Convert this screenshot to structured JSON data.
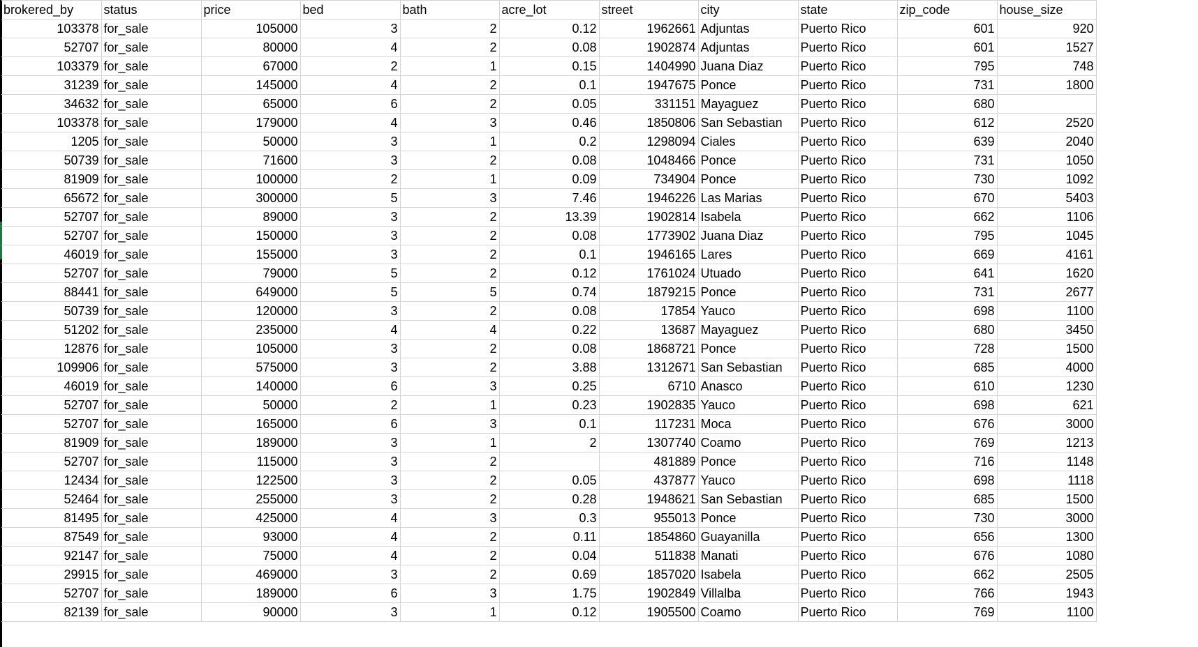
{
  "columns": [
    {
      "key": "brokered_by",
      "label": "brokered_by",
      "align": "num"
    },
    {
      "key": "status",
      "label": "status",
      "align": "txt"
    },
    {
      "key": "price",
      "label": "price",
      "align": "num"
    },
    {
      "key": "bed",
      "label": "bed",
      "align": "num"
    },
    {
      "key": "bath",
      "label": "bath",
      "align": "num"
    },
    {
      "key": "acre_lot",
      "label": "acre_lot",
      "align": "num"
    },
    {
      "key": "street",
      "label": "street",
      "align": "num"
    },
    {
      "key": "city",
      "label": "city",
      "align": "txt"
    },
    {
      "key": "state",
      "label": "state",
      "align": "txt"
    },
    {
      "key": "zip_code",
      "label": "zip_code",
      "align": "num"
    },
    {
      "key": "house_size",
      "label": "house_size",
      "align": "num"
    }
  ],
  "rows": [
    [
      "103378",
      "for_sale",
      "105000",
      "3",
      "2",
      "0.12",
      "1962661",
      "Adjuntas",
      "Puerto Rico",
      "601",
      "920"
    ],
    [
      "52707",
      "for_sale",
      "80000",
      "4",
      "2",
      "0.08",
      "1902874",
      "Adjuntas",
      "Puerto Rico",
      "601",
      "1527"
    ],
    [
      "103379",
      "for_sale",
      "67000",
      "2",
      "1",
      "0.15",
      "1404990",
      "Juana Diaz",
      "Puerto Rico",
      "795",
      "748"
    ],
    [
      "31239",
      "for_sale",
      "145000",
      "4",
      "2",
      "0.1",
      "1947675",
      "Ponce",
      "Puerto Rico",
      "731",
      "1800"
    ],
    [
      "34632",
      "for_sale",
      "65000",
      "6",
      "2",
      "0.05",
      "331151",
      "Mayaguez",
      "Puerto Rico",
      "680",
      ""
    ],
    [
      "103378",
      "for_sale",
      "179000",
      "4",
      "3",
      "0.46",
      "1850806",
      "San Sebastian",
      "Puerto Rico",
      "612",
      "2520"
    ],
    [
      "1205",
      "for_sale",
      "50000",
      "3",
      "1",
      "0.2",
      "1298094",
      "Ciales",
      "Puerto Rico",
      "639",
      "2040"
    ],
    [
      "50739",
      "for_sale",
      "71600",
      "3",
      "2",
      "0.08",
      "1048466",
      "Ponce",
      "Puerto Rico",
      "731",
      "1050"
    ],
    [
      "81909",
      "for_sale",
      "100000",
      "2",
      "1",
      "0.09",
      "734904",
      "Ponce",
      "Puerto Rico",
      "730",
      "1092"
    ],
    [
      "65672",
      "for_sale",
      "300000",
      "5",
      "3",
      "7.46",
      "1946226",
      "Las Marias",
      "Puerto Rico",
      "670",
      "5403"
    ],
    [
      "52707",
      "for_sale",
      "89000",
      "3",
      "2",
      "13.39",
      "1902814",
      "Isabela",
      "Puerto Rico",
      "662",
      "1106"
    ],
    [
      "52707",
      "for_sale",
      "150000",
      "3",
      "2",
      "0.08",
      "1773902",
      "Juana Diaz",
      "Puerto Rico",
      "795",
      "1045"
    ],
    [
      "46019",
      "for_sale",
      "155000",
      "3",
      "2",
      "0.1",
      "1946165",
      "Lares",
      "Puerto Rico",
      "669",
      "4161"
    ],
    [
      "52707",
      "for_sale",
      "79000",
      "5",
      "2",
      "0.12",
      "1761024",
      "Utuado",
      "Puerto Rico",
      "641",
      "1620"
    ],
    [
      "88441",
      "for_sale",
      "649000",
      "5",
      "5",
      "0.74",
      "1879215",
      "Ponce",
      "Puerto Rico",
      "731",
      "2677"
    ],
    [
      "50739",
      "for_sale",
      "120000",
      "3",
      "2",
      "0.08",
      "17854",
      "Yauco",
      "Puerto Rico",
      "698",
      "1100"
    ],
    [
      "51202",
      "for_sale",
      "235000",
      "4",
      "4",
      "0.22",
      "13687",
      "Mayaguez",
      "Puerto Rico",
      "680",
      "3450"
    ],
    [
      "12876",
      "for_sale",
      "105000",
      "3",
      "2",
      "0.08",
      "1868721",
      "Ponce",
      "Puerto Rico",
      "728",
      "1500"
    ],
    [
      "109906",
      "for_sale",
      "575000",
      "3",
      "2",
      "3.88",
      "1312671",
      "San Sebastian",
      "Puerto Rico",
      "685",
      "4000"
    ],
    [
      "46019",
      "for_sale",
      "140000",
      "6",
      "3",
      "0.25",
      "6710",
      "Anasco",
      "Puerto Rico",
      "610",
      "1230"
    ],
    [
      "52707",
      "for_sale",
      "50000",
      "2",
      "1",
      "0.23",
      "1902835",
      "Yauco",
      "Puerto Rico",
      "698",
      "621"
    ],
    [
      "52707",
      "for_sale",
      "165000",
      "6",
      "3",
      "0.1",
      "117231",
      "Moca",
      "Puerto Rico",
      "676",
      "3000"
    ],
    [
      "81909",
      "for_sale",
      "189000",
      "3",
      "1",
      "2",
      "1307740",
      "Coamo",
      "Puerto Rico",
      "769",
      "1213"
    ],
    [
      "52707",
      "for_sale",
      "115000",
      "3",
      "2",
      "",
      "481889",
      "Ponce",
      "Puerto Rico",
      "716",
      "1148"
    ],
    [
      "12434",
      "for_sale",
      "122500",
      "3",
      "2",
      "0.05",
      "437877",
      "Yauco",
      "Puerto Rico",
      "698",
      "1118"
    ],
    [
      "52464",
      "for_sale",
      "255000",
      "3",
      "2",
      "0.28",
      "1948621",
      "San Sebastian",
      "Puerto Rico",
      "685",
      "1500"
    ],
    [
      "81495",
      "for_sale",
      "425000",
      "4",
      "3",
      "0.3",
      "955013",
      "Ponce",
      "Puerto Rico",
      "730",
      "3000"
    ],
    [
      "87549",
      "for_sale",
      "93000",
      "4",
      "2",
      "0.11",
      "1854860",
      "Guayanilla",
      "Puerto Rico",
      "656",
      "1300"
    ],
    [
      "92147",
      "for_sale",
      "75000",
      "4",
      "2",
      "0.04",
      "511838",
      "Manati",
      "Puerto Rico",
      "676",
      "1080"
    ],
    [
      "29915",
      "for_sale",
      "469000",
      "3",
      "2",
      "0.69",
      "1857020",
      "Isabela",
      "Puerto Rico",
      "662",
      "2505"
    ],
    [
      "52707",
      "for_sale",
      "189000",
      "6",
      "3",
      "1.75",
      "1902849",
      "Villalba",
      "Puerto Rico",
      "766",
      "1943"
    ],
    [
      "82139",
      "for_sale",
      "90000",
      "3",
      "1",
      "0.12",
      "1905500",
      "Coamo",
      "Puerto Rico",
      "769",
      "1100"
    ]
  ]
}
